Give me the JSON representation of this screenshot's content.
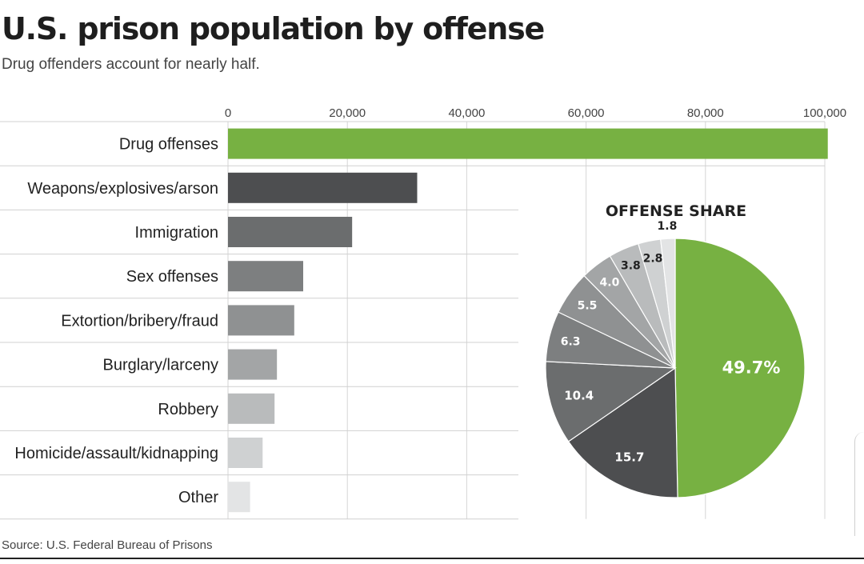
{
  "header": {
    "title": "U.S. prison population by offense",
    "subtitle": "Drug offenders account for nearly half."
  },
  "footer": {
    "source": "Source: U.S. Federal Bureau of Prisons"
  },
  "colors": {
    "drug": "#77b142",
    "weapons": "#4d4e50",
    "immigration": "#6b6d6e",
    "sex": "#7d7f80",
    "fraud": "#8f9192",
    "burglary": "#a3a5a6",
    "robbery": "#b9bbbc",
    "homicide": "#cfd1d2",
    "other": "#e3e4e5",
    "grid": "#d6d6d6",
    "pie_text_dark": "#222222",
    "pie_text_light": "#ffffff"
  },
  "chart_data": [
    {
      "type": "bar",
      "orientation": "horizontal",
      "categories": [
        "Drug offenses",
        "Weapons/explosives/arson",
        "Immigration",
        "Sex offenses",
        "Extortion/bribery/fraud",
        "Burglary/larceny",
        "Robbery",
        "Homicide/assault/kidnapping",
        "Other"
      ],
      "values": [
        100500,
        31700,
        20800,
        12600,
        11100,
        8200,
        7800,
        5800,
        3700
      ],
      "xlim": [
        0,
        100000
      ],
      "xticks": [
        0,
        20000,
        40000,
        60000,
        80000,
        100000
      ],
      "xtick_labels": [
        "0",
        "20,000",
        "40,000",
        "60,000",
        "80,000",
        "100,000"
      ],
      "grid": true,
      "axis_position": "top"
    },
    {
      "type": "pie",
      "title": "OFFENSE SHARE",
      "slices": [
        {
          "category": "Drug offenses",
          "value": 49.7,
          "label": "49.7%"
        },
        {
          "category": "Weapons/explosives/arson",
          "value": 15.7,
          "label": "15.7"
        },
        {
          "category": "Immigration",
          "value": 10.4,
          "label": "10.4"
        },
        {
          "category": "Sex offenses",
          "value": 6.3,
          "label": "6.3"
        },
        {
          "category": "Extortion/bribery/fraud",
          "value": 5.5,
          "label": "5.5"
        },
        {
          "category": "Burglary/larceny",
          "value": 4.0,
          "label": "4.0"
        },
        {
          "category": "Robbery",
          "value": 3.8,
          "label": "3.8"
        },
        {
          "category": "Homicide/assault/kidnapping",
          "value": 2.8,
          "label": "2.8"
        },
        {
          "category": "Other",
          "value": 1.8,
          "label": "1.8"
        }
      ]
    }
  ]
}
